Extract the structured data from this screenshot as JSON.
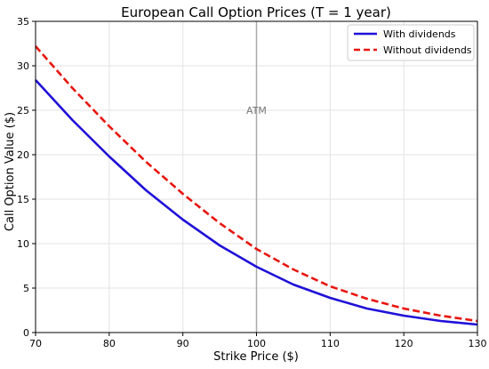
{
  "chart_data": {
    "type": "line",
    "title": "European Call Option Prices (T = 1 year)",
    "xlabel": "Strike Price ($)",
    "ylabel": "Call Option Value ($)",
    "xlim": [
      70,
      130
    ],
    "ylim": [
      0,
      35
    ],
    "x_ticks": [
      70,
      80,
      90,
      100,
      110,
      120,
      130
    ],
    "y_ticks": [
      0,
      5,
      10,
      15,
      20,
      25,
      30,
      35
    ],
    "grid": true,
    "legend_position": "top-right",
    "x": [
      70,
      75,
      80,
      85,
      90,
      95,
      100,
      105,
      110,
      115,
      120,
      125,
      130
    ],
    "series": [
      {
        "name": "With dividends",
        "style": "solid",
        "color": "#1f10d8",
        "values": [
          28.4,
          23.9,
          19.8,
          16.0,
          12.7,
          9.8,
          7.4,
          5.4,
          3.9,
          2.7,
          1.9,
          1.3,
          0.9
        ]
      },
      {
        "name": "Without dividends",
        "style": "dashed",
        "color": "#e8150f",
        "values": [
          32.2,
          27.5,
          23.2,
          19.2,
          15.6,
          12.3,
          9.4,
          7.1,
          5.2,
          3.8,
          2.7,
          1.9,
          1.3
        ]
      }
    ],
    "annotations": [
      {
        "type": "vline",
        "x": 100,
        "color": "#aaaaaa"
      },
      {
        "type": "text",
        "text": "ATM",
        "x": 100,
        "y": 25
      }
    ]
  }
}
